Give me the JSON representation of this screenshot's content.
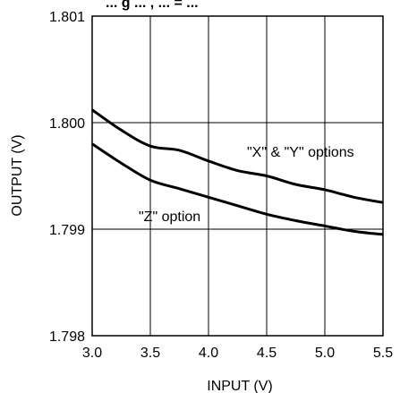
{
  "chart_data": {
    "type": "line",
    "title_fragment": "... g ... , ... = ...",
    "xlabel": "INPUT (V)",
    "ylabel": "OUTPUT (V)",
    "xlim": [
      3.0,
      5.5
    ],
    "ylim": [
      1.798,
      1.801
    ],
    "x_ticks": [
      "3.0",
      "3.5",
      "4.0",
      "4.5",
      "5.0",
      "5.5"
    ],
    "y_ticks": [
      "1.798",
      "1.799",
      "1.800",
      "1.801"
    ],
    "grid": true,
    "series": [
      {
        "name": "\"X\" & \"Y\" options",
        "color": "#000000",
        "x": [
          3.0,
          3.25,
          3.5,
          3.75,
          4.0,
          4.25,
          4.5,
          4.75,
          5.0,
          5.25,
          5.5
        ],
        "y": [
          1.80012,
          1.79993,
          1.79978,
          1.79974,
          1.79964,
          1.79955,
          1.7995,
          1.79942,
          1.79937,
          1.7993,
          1.79925
        ]
      },
      {
        "name": "\"Z\" option",
        "color": "#000000",
        "x": [
          3.0,
          3.25,
          3.5,
          3.75,
          4.0,
          4.25,
          4.5,
          4.75,
          5.0,
          5.25,
          5.5
        ],
        "y": [
          1.7998,
          1.79962,
          1.79946,
          1.79938,
          1.7993,
          1.79922,
          1.79914,
          1.79908,
          1.79903,
          1.79898,
          1.79895
        ]
      }
    ],
    "annotations": [
      "\"X\" & \"Y\" options",
      "\"Z\" option"
    ]
  }
}
